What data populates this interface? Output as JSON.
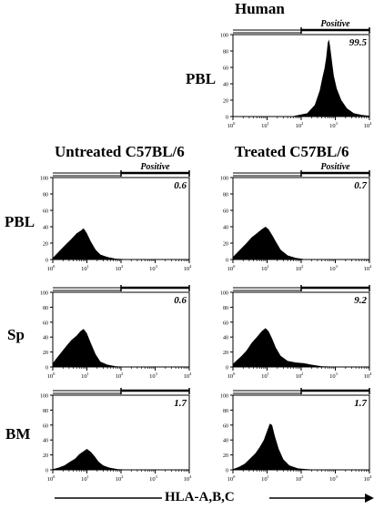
{
  "column_headers": {
    "human": "Human",
    "untreated": "Untreated C57BL/6",
    "treated": "Treated C57BL/6"
  },
  "row_labels": {
    "pbl_human": "PBL",
    "pbl": "PBL",
    "sp": "Sp",
    "bm": "BM"
  },
  "x_axis_label": "HLA-A,B,C",
  "chart_data": [
    {
      "type": "area",
      "panel": "human-pbl",
      "gate_label": "Positive",
      "percent_positive": "99.5",
      "xscale": "log",
      "xlim": [
        1,
        10000
      ],
      "ylim": [
        0,
        100
      ],
      "gate_range": [
        100,
        10000
      ],
      "x_ticks": [
        "10^0",
        "10^1",
        "10^2",
        "10^3",
        "10^4"
      ],
      "y_ticks": [
        "0",
        "20",
        "40",
        "60",
        "80",
        "100"
      ],
      "x": [
        50,
        150,
        250,
        350,
        420,
        480,
        540,
        600,
        650,
        700,
        780,
        900,
        1100,
        1500,
        2200,
        3500,
        6000,
        10000
      ],
      "y": [
        0,
        4,
        14,
        32,
        48,
        58,
        72,
        90,
        94,
        86,
        70,
        50,
        34,
        20,
        10,
        4,
        2,
        1
      ]
    },
    {
      "type": "area",
      "panel": "untreated-pbl",
      "gate_label": "Positive",
      "percent_positive": "0.6",
      "xscale": "log",
      "xlim": [
        1,
        10000
      ],
      "ylim": [
        0,
        100
      ],
      "gate_range": [
        100,
        10000
      ],
      "x_ticks": [
        "10^0",
        "10^1",
        "10^2",
        "10^3",
        "10^4"
      ],
      "y_ticks": [
        "0",
        "20",
        "40",
        "60",
        "80",
        "100"
      ],
      "x": [
        1,
        1.3,
        1.8,
        2.5,
        3.5,
        5,
        6.5,
        8,
        10,
        13,
        18,
        25,
        40,
        70,
        120,
        300,
        1000,
        10000
      ],
      "y": [
        2,
        7,
        13,
        19,
        25,
        32,
        35,
        38,
        32,
        22,
        12,
        6,
        3,
        1,
        0.5,
        0,
        0,
        0
      ]
    },
    {
      "type": "area",
      "panel": "treated-pbl",
      "gate_label": "Positive",
      "percent_positive": "0.7",
      "xscale": "log",
      "xlim": [
        1,
        10000
      ],
      "ylim": [
        0,
        100
      ],
      "gate_range": [
        100,
        10000
      ],
      "x_ticks": [
        "10^0",
        "10^1",
        "10^2",
        "10^3",
        "10^4"
      ],
      "y_ticks": [
        "0",
        "20",
        "40",
        "60",
        "80",
        "100"
      ],
      "x": [
        1,
        1.3,
        1.8,
        2.5,
        3.5,
        5,
        7,
        9,
        11,
        14,
        18,
        25,
        40,
        70,
        120,
        300,
        1000,
        10000
      ],
      "y": [
        3,
        8,
        14,
        20,
        27,
        32,
        37,
        40,
        37,
        30,
        22,
        12,
        5,
        2,
        0.5,
        0,
        0,
        0
      ]
    },
    {
      "type": "area",
      "panel": "untreated-sp",
      "gate_label": "",
      "percent_positive": "0.6",
      "xscale": "log",
      "xlim": [
        1,
        10000
      ],
      "ylim": [
        0,
        100
      ],
      "gate_range": [
        100,
        10000
      ],
      "x_ticks": [
        "10^0",
        "10^1",
        "10^2",
        "10^3",
        "10^4"
      ],
      "y_ticks": [
        "0",
        "20",
        "40",
        "60",
        "80",
        "100"
      ],
      "x": [
        1,
        1.3,
        1.8,
        2.5,
        3.5,
        5,
        6.5,
        8,
        10,
        13,
        18,
        25,
        40,
        70,
        120,
        300,
        1000,
        10000
      ],
      "y": [
        5,
        12,
        20,
        28,
        36,
        42,
        48,
        51,
        45,
        32,
        17,
        7,
        3,
        1,
        0.5,
        0,
        0,
        0
      ]
    },
    {
      "type": "area",
      "panel": "treated-sp",
      "gate_label": "",
      "percent_positive": "9.2",
      "xscale": "log",
      "xlim": [
        1,
        10000
      ],
      "ylim": [
        0,
        100
      ],
      "gate_range": [
        100,
        10000
      ],
      "x_ticks": [
        "10^0",
        "10^1",
        "10^2",
        "10^3",
        "10^4"
      ],
      "y_ticks": [
        "0",
        "20",
        "40",
        "60",
        "80",
        "100"
      ],
      "x": [
        1,
        1.3,
        1.8,
        2.5,
        3.5,
        5,
        7,
        9,
        11,
        14,
        18,
        25,
        40,
        70,
        120,
        200,
        400,
        1000,
        10000
      ],
      "y": [
        4,
        9,
        15,
        22,
        32,
        40,
        48,
        52,
        48,
        38,
        26,
        15,
        8,
        6,
        5,
        3,
        1,
        0.5,
        0
      ]
    },
    {
      "type": "area",
      "panel": "untreated-bm",
      "gate_label": "",
      "percent_positive": "1.7",
      "xscale": "log",
      "xlim": [
        1,
        10000
      ],
      "ylim": [
        0,
        100
      ],
      "gate_range": [
        100,
        10000
      ],
      "x_ticks": [
        "10^0",
        "10^1",
        "10^2",
        "10^3",
        "10^4"
      ],
      "y_ticks": [
        "0",
        "20",
        "40",
        "60",
        "80",
        "100"
      ],
      "x": [
        1,
        1.5,
        2.2,
        3,
        4.5,
        6,
        8,
        10,
        13,
        17,
        22,
        30,
        45,
        80,
        150,
        400,
        2000,
        10000
      ],
      "y": [
        1,
        3,
        6,
        10,
        15,
        21,
        25,
        28,
        24,
        18,
        11,
        6,
        3,
        1,
        0.5,
        0,
        0,
        0
      ]
    },
    {
      "type": "area",
      "panel": "treated-bm",
      "gate_label": "",
      "percent_positive": "1.7",
      "xscale": "log",
      "xlim": [
        1,
        10000
      ],
      "ylim": [
        0,
        100
      ],
      "gate_range": [
        100,
        10000
      ],
      "x_ticks": [
        "10^0",
        "10^1",
        "10^2",
        "10^3",
        "10^4"
      ],
      "y_ticks": [
        "0",
        "20",
        "40",
        "60",
        "80",
        "100"
      ],
      "x": [
        1,
        1.5,
        2.2,
        3,
        4.5,
        6,
        8,
        10,
        12,
        14,
        17,
        22,
        30,
        45,
        80,
        150,
        400,
        2000,
        10000
      ],
      "y": [
        1,
        4,
        8,
        14,
        22,
        30,
        40,
        52,
        62,
        60,
        45,
        28,
        14,
        6,
        2,
        1,
        0,
        0,
        0
      ]
    }
  ]
}
